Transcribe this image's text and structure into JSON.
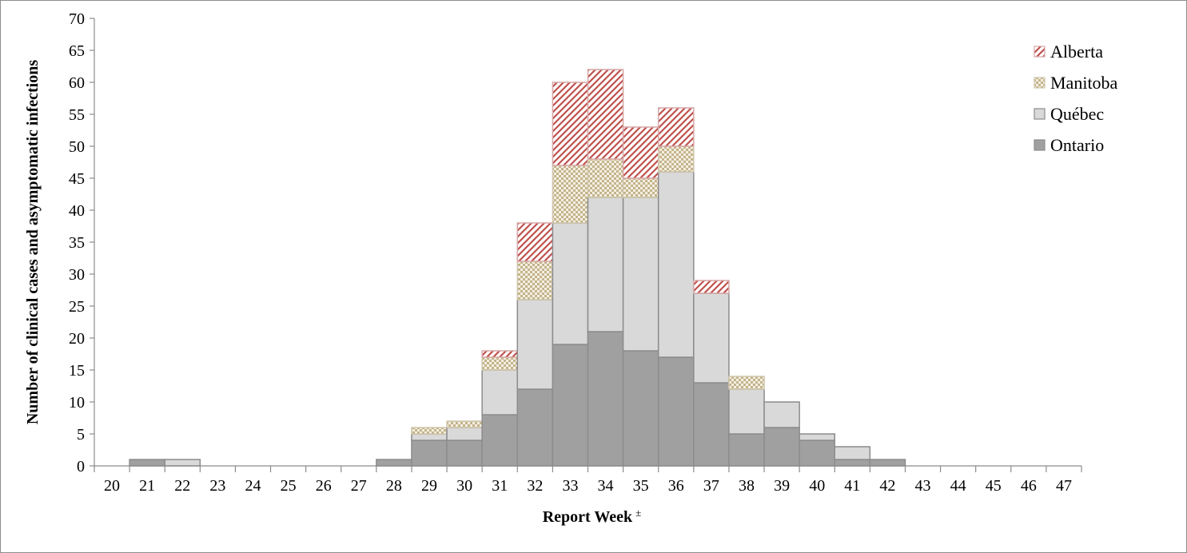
{
  "chart_data": {
    "type": "bar",
    "stacked": true,
    "title": "",
    "xlabel": "Report Week",
    "xlabel_suffix": "±",
    "ylabel": "Number of clinical  cases and asymptomatic infections",
    "ylim": [
      0,
      70
    ],
    "yticks": [
      0,
      5,
      10,
      15,
      20,
      25,
      30,
      35,
      40,
      45,
      50,
      55,
      60,
      65,
      70
    ],
    "categories": [
      "20",
      "21",
      "22",
      "23",
      "24",
      "25",
      "26",
      "27",
      "28",
      "29",
      "30",
      "31",
      "32",
      "33",
      "34",
      "35",
      "36",
      "37",
      "38",
      "39",
      "40",
      "41",
      "42",
      "43",
      "44",
      "45",
      "46",
      "47"
    ],
    "series": [
      {
        "name": "Ontario",
        "color": "#a0a0a0",
        "pattern": "solid",
        "values": [
          0,
          1,
          0,
          0,
          0,
          0,
          0,
          0,
          1,
          4,
          4,
          8,
          12,
          19,
          21,
          18,
          17,
          13,
          5,
          6,
          4,
          1,
          1,
          0,
          0,
          0,
          0,
          0
        ]
      },
      {
        "name": "Québec",
        "color": "#d9d9d9",
        "pattern": "solid",
        "values": [
          0,
          0,
          1,
          0,
          0,
          0,
          0,
          0,
          0,
          1,
          2,
          7,
          14,
          19,
          21,
          24,
          29,
          14,
          7,
          4,
          1,
          2,
          0,
          0,
          0,
          0,
          0,
          0
        ]
      },
      {
        "name": "Manitoba",
        "color": "#c4b48c",
        "pattern": "checker",
        "values": [
          0,
          0,
          0,
          0,
          0,
          0,
          0,
          0,
          0,
          1,
          1,
          2,
          6,
          9,
          6,
          3,
          4,
          0,
          2,
          0,
          0,
          0,
          0,
          0,
          0,
          0,
          0,
          0
        ]
      },
      {
        "name": "Alberta",
        "color": "#c0504d",
        "pattern": "diagonal",
        "values": [
          0,
          0,
          0,
          0,
          0,
          0,
          0,
          0,
          0,
          0,
          0,
          1,
          6,
          13,
          14,
          8,
          6,
          2,
          0,
          0,
          0,
          0,
          0,
          0,
          0,
          0,
          0,
          0
        ]
      }
    ],
    "legend_order": [
      "Alberta",
      "Manitoba",
      "Québec",
      "Ontario"
    ],
    "legend_position": "top-right",
    "grid": false
  }
}
